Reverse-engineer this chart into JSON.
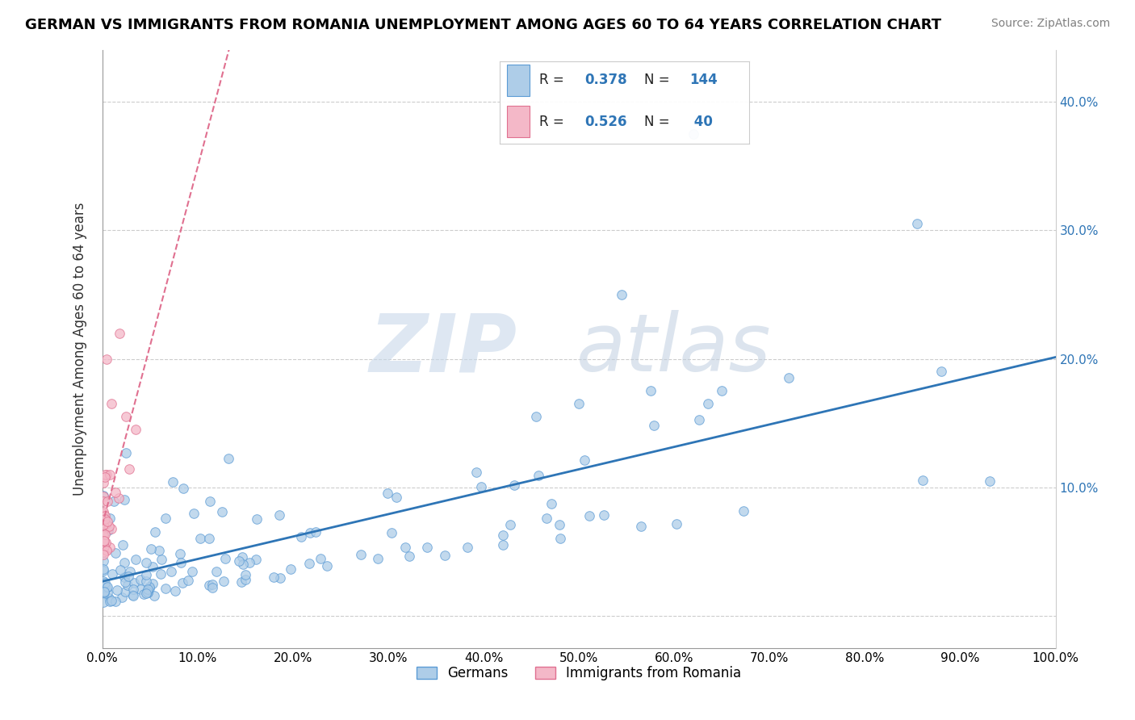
{
  "title": "GERMAN VS IMMIGRANTS FROM ROMANIA UNEMPLOYMENT AMONG AGES 60 TO 64 YEARS CORRELATION CHART",
  "source": "Source: ZipAtlas.com",
  "ylabel": "Unemployment Among Ages 60 to 64 years",
  "xlim": [
    0,
    1.0
  ],
  "ylim": [
    -0.025,
    0.44
  ],
  "xticks": [
    0.0,
    0.1,
    0.2,
    0.3,
    0.4,
    0.5,
    0.6,
    0.7,
    0.8,
    0.9,
    1.0
  ],
  "xticklabels": [
    "0.0%",
    "10.0%",
    "20.0%",
    "30.0%",
    "40.0%",
    "50.0%",
    "60.0%",
    "70.0%",
    "80.0%",
    "90.0%",
    "100.0%"
  ],
  "ytick_vals": [
    0.0,
    0.1,
    0.2,
    0.3,
    0.4
  ],
  "ytick_labels_right": [
    "",
    "10.0%",
    "20.0%",
    "30.0%",
    "40.0%"
  ],
  "german_fill": "#aecde8",
  "german_edge": "#5b9bd5",
  "german_line": "#2e75b6",
  "romania_fill": "#f4b8c8",
  "romania_edge": "#e07090",
  "romania_line": "#e07090",
  "legend_german_R": "0.378",
  "legend_german_N": "144",
  "legend_romania_R": "0.526",
  "legend_romania_N": "40",
  "legend_color": "#2e75b6",
  "watermark_zip": "ZIP",
  "watermark_atlas": "atlas",
  "title_fontsize": 13,
  "axis_fontsize": 11
}
